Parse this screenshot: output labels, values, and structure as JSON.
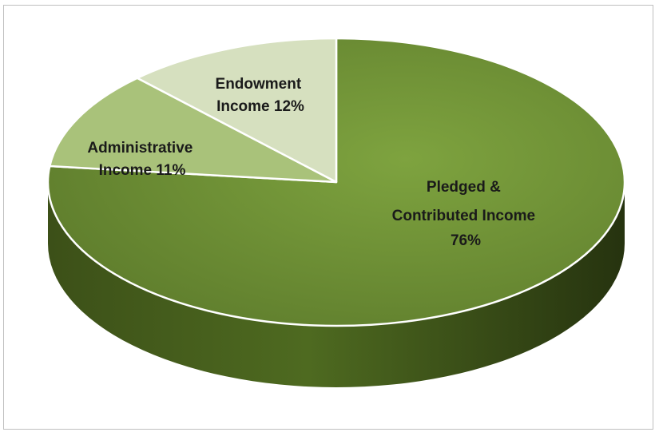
{
  "chart_data": {
    "type": "pie",
    "title": "",
    "slices": [
      {
        "name": "pledged-contributed",
        "value": 76,
        "label_lines": [
          "Pledged &",
          "Contributed   Income",
          "76%"
        ],
        "color": "#76933c",
        "side_color": "#3f5418"
      },
      {
        "name": "administrative",
        "value": 11,
        "label_lines": [
          "Administrative",
          "Income 11%"
        ],
        "color": "#a9c27a",
        "side_color": "#7c9450"
      },
      {
        "name": "endowment",
        "value": 12,
        "label_lines": [
          "Endowment",
          "Income 12%"
        ],
        "color": "#d6e0bf",
        "side_color": "#b3c092"
      }
    ],
    "legend": "none",
    "style": "3d"
  }
}
